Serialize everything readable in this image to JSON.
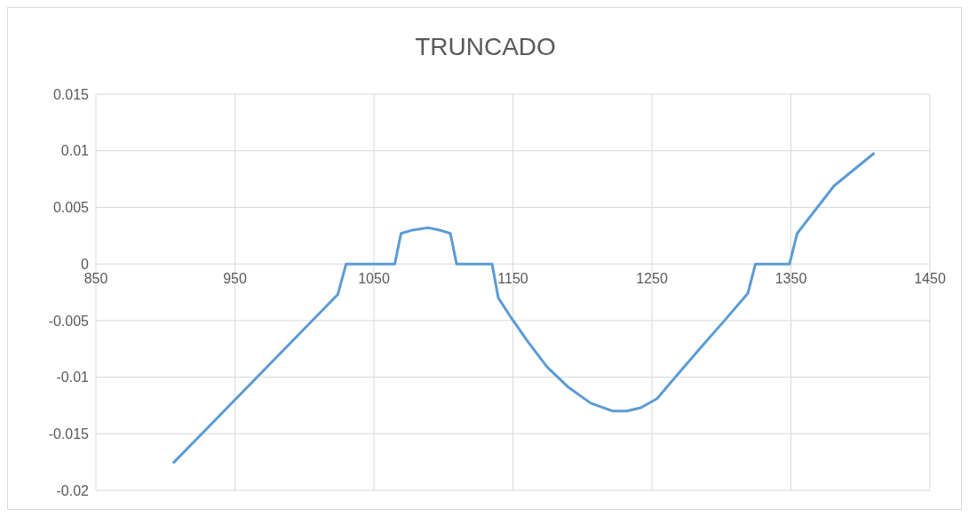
{
  "chart_data": {
    "type": "line",
    "title": "TRUNCADO",
    "series": [
      {
        "color": "#5b9bd5",
        "x": [
          905.5,
          1024,
          1030,
          1065,
          1069.5,
          1078,
          1089,
          1097,
          1105,
          1109.5,
          1135,
          1139.5,
          1148.5,
          1161,
          1174.6,
          1190,
          1206,
          1222,
          1232,
          1242,
          1253.7,
          1269.6,
          1285,
          1301.5,
          1319,
          1324.5,
          1349,
          1354.5,
          1381,
          1410
        ],
        "values": [
          -0.0176,
          -0.0027,
          0,
          0,
          0.0027,
          0.003,
          0.0032,
          0.003,
          0.0027,
          0,
          0,
          -0.003,
          -0.0047,
          -0.0069,
          -0.0091,
          -0.0109,
          -0.0123,
          -0.013,
          -0.013,
          -0.0127,
          -0.0119,
          -0.0096,
          -0.0074,
          -0.0051,
          -0.0026,
          0,
          0,
          0.0027,
          0.0069,
          0.0098
        ]
      }
    ],
    "xlim": [
      850,
      1450
    ],
    "xticks": [
      850,
      950,
      1050,
      1150,
      1250,
      1350,
      1450
    ],
    "ylim": [
      -0.02,
      0.015
    ],
    "yticks": [
      -0.02,
      -0.015,
      -0.01,
      -0.005,
      0,
      0.005,
      0.01,
      0.015
    ],
    "grid": true,
    "legend": false,
    "marker": "none",
    "line_style": "solid"
  }
}
